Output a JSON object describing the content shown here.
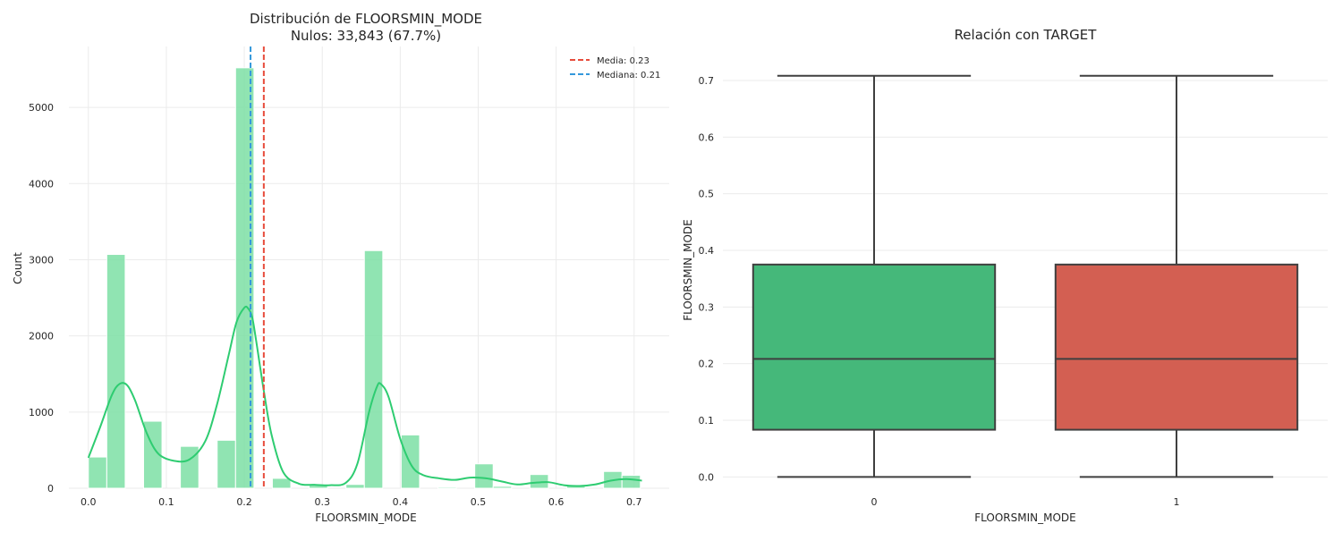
{
  "colors": {
    "hist_fill": "#7ddfa4",
    "kde_line": "#2ecc71",
    "mean_line": "#e74c3c",
    "median_line": "#3498db",
    "box_0": "#45b87a",
    "box_1": "#d35f52",
    "box_edge": "#3f3f3f",
    "grid": "#ebebeb"
  },
  "chart_data": [
    {
      "type": "histogram",
      "title_line1": "Distribución de FLOORSMIN_MODE",
      "title_line2": "Nulos: 33,843 (67.7%)",
      "xlabel": "FLOORSMIN_MODE",
      "ylabel": "Count",
      "xlim": [
        -0.025,
        0.745
      ],
      "ylim": [
        0,
        5800
      ],
      "xticks": [
        0.0,
        0.1,
        0.2,
        0.3,
        0.4,
        0.5,
        0.6,
        0.7
      ],
      "xtick_labels": [
        "0.0",
        "0.1",
        "0.2",
        "0.3",
        "0.4",
        "0.5",
        "0.6",
        "0.7"
      ],
      "yticks": [
        0,
        1000,
        2000,
        3000,
        4000,
        5000
      ],
      "ytick_labels": [
        "0",
        "1000",
        "2000",
        "3000",
        "4000",
        "5000"
      ],
      "bin_width": 0.0236,
      "bins": [
        {
          "x0": 0.0,
          "count": 410
        },
        {
          "x0": 0.0236,
          "count": 3070
        },
        {
          "x0": 0.0708,
          "count": 880
        },
        {
          "x0": 0.118,
          "count": 550
        },
        {
          "x0": 0.1652,
          "count": 630
        },
        {
          "x0": 0.1888,
          "count": 5520
        },
        {
          "x0": 0.236,
          "count": 130
        },
        {
          "x0": 0.2832,
          "count": 40
        },
        {
          "x0": 0.3304,
          "count": 50
        },
        {
          "x0": 0.354,
          "count": 3120
        },
        {
          "x0": 0.4012,
          "count": 700
        },
        {
          "x0": 0.4484,
          "count": 15
        },
        {
          "x0": 0.4956,
          "count": 320
        },
        {
          "x0": 0.5192,
          "count": 25
        },
        {
          "x0": 0.5664,
          "count": 180
        },
        {
          "x0": 0.6136,
          "count": 30
        },
        {
          "x0": 0.6608,
          "count": 220
        },
        {
          "x0": 0.6844,
          "count": 170
        }
      ],
      "kde": {
        "x": [
          0.0,
          0.015,
          0.03,
          0.04,
          0.05,
          0.06,
          0.075,
          0.09,
          0.11,
          0.13,
          0.15,
          0.165,
          0.18,
          0.19,
          0.2,
          0.205,
          0.21,
          0.215,
          0.225,
          0.235,
          0.25,
          0.27,
          0.29,
          0.31,
          0.33,
          0.345,
          0.36,
          0.37,
          0.375,
          0.385,
          0.4,
          0.415,
          0.43,
          0.45,
          0.47,
          0.49,
          0.51,
          0.53,
          0.55,
          0.57,
          0.59,
          0.61,
          0.63,
          0.65,
          0.67,
          0.69,
          0.71
        ],
        "y": [
          400,
          800,
          1220,
          1370,
          1350,
          1150,
          720,
          450,
          360,
          380,
          620,
          1100,
          1750,
          2180,
          2370,
          2360,
          2250,
          1950,
          1280,
          700,
          210,
          60,
          45,
          40,
          70,
          320,
          1000,
          1330,
          1370,
          1200,
          650,
          290,
          170,
          130,
          110,
          140,
          130,
          90,
          50,
          70,
          80,
          40,
          30,
          50,
          100,
          120,
          100
        ]
      },
      "mean": 0.225,
      "median": 0.208,
      "legend": {
        "position": "upper right",
        "entries": [
          "Media: 0.23",
          "Mediana: 0.21"
        ]
      },
      "grid": true
    },
    {
      "type": "box",
      "title": "Relación con TARGET",
      "xlabel": "FLOORSMIN_MODE",
      "ylabel": "FLOORSMIN_MODE",
      "categories": [
        "0",
        "1"
      ],
      "ylim": [
        -0.02,
        0.76
      ],
      "yticks": [
        0.0,
        0.1,
        0.2,
        0.3,
        0.4,
        0.5,
        0.6,
        0.7
      ],
      "ytick_labels": [
        "0.0",
        "0.1",
        "0.2",
        "0.3",
        "0.4",
        "0.5",
        "0.6",
        "0.7"
      ],
      "boxes": [
        {
          "category": "0",
          "whisker_low": 0.0,
          "q1": 0.0833,
          "median": 0.2083,
          "q3": 0.375,
          "whisker_high": 0.7083
        },
        {
          "category": "1",
          "whisker_low": 0.0,
          "q1": 0.0833,
          "median": 0.2083,
          "q3": 0.375,
          "whisker_high": 0.7083
        }
      ],
      "grid": true
    }
  ]
}
